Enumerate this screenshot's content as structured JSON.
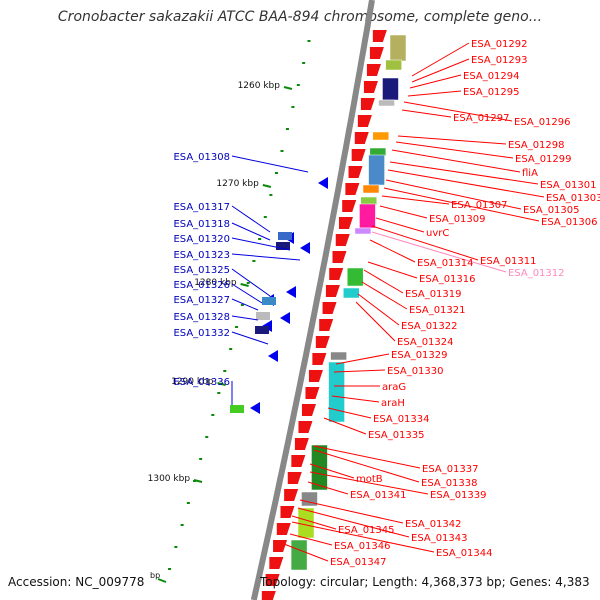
{
  "title": "Cronobacter sakazakii ATCC BAA-894 chromosome, complete geno...",
  "footer": {
    "accession": "Accession: NC_009778",
    "topology": "Topology: circular; Length: 4,368,373 bp; Genes: 4,383",
    "bp_fragment": "bp"
  },
  "colors": {
    "forward_label": "#ff0000",
    "reverse_label": "#0000bb",
    "highlight_label": "#ff88bb",
    "backbone": "#888888",
    "tick": "#0a8a0a"
  },
  "scale_ticks": [
    {
      "label": "1260 kbp"
    },
    {
      "label": "1270 kbp"
    },
    {
      "label": "1280 kbp"
    },
    {
      "label": "1290 kbp"
    },
    {
      "label": "1300 kbp"
    }
  ],
  "reverse_labels": [
    "ESA_01308",
    "ESA_01317",
    "ESA_01318",
    "ESA_01320",
    "ESA_01323",
    "ESA_01325",
    "ESA_01326",
    "ESA_01327",
    "ESA_01328",
    "ESA_01332",
    "ESA_01336"
  ],
  "forward_labels": [
    "ESA_01292",
    "ESA_01293",
    "ESA_01294",
    "ESA_01295",
    "ESA_01296",
    "ESA_01297",
    "ESA_01298",
    "ESA_01299",
    "fliA",
    "ESA_01301",
    "ESA_01303",
    "ESA_01305",
    "ESA_01306",
    "ESA_01307",
    "ESA_01309",
    "uvrC",
    "ESA_01311",
    "ESA_01312",
    "ESA_01314",
    "ESA_01316",
    "ESA_01319",
    "ESA_01321",
    "ESA_01322",
    "ESA_01324",
    "ESA_01329",
    "ESA_01330",
    "araG",
    "araH",
    "ESA_01334",
    "ESA_01335",
    "ESA_01337",
    "ESA_01338",
    "motB",
    "ESA_01339",
    "ESA_01341",
    "ESA_01342",
    "ESA_01343",
    "ESA_01345",
    "ESA_01344",
    "ESA_01346",
    "ESA_01347"
  ],
  "highlight_label": "ESA_01312"
}
